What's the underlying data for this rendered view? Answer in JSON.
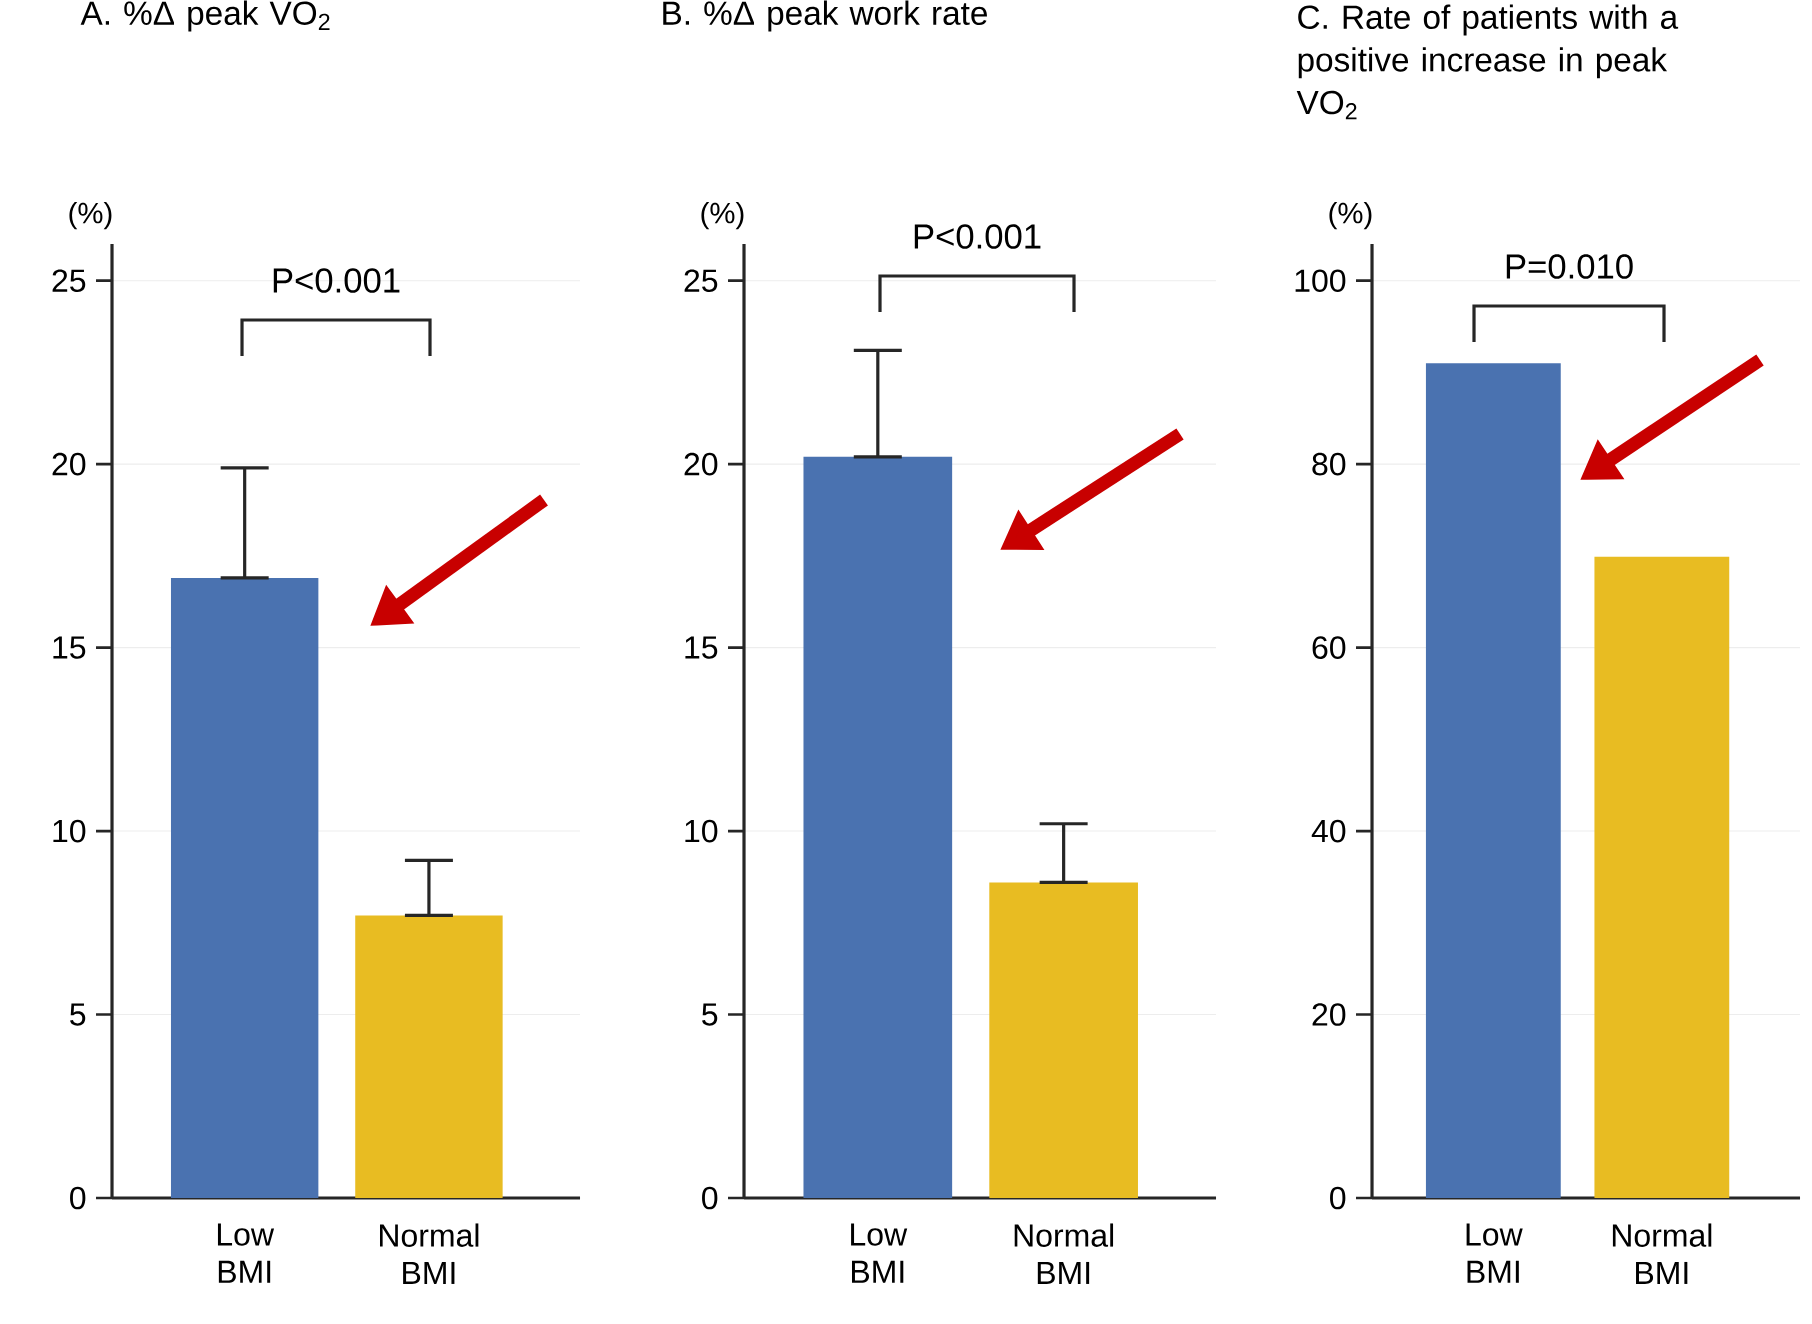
{
  "chart_data": [
    {
      "type": "bar",
      "title": "A.  %Δ peak VO$_{2}$",
      "ylabel": "(%)",
      "categories": [
        "Low BMI",
        "Normal BMI"
      ],
      "values": [
        16.9,
        7.7
      ],
      "colors": [
        "#4a72b0",
        "#e8bc22"
      ],
      "errors": [
        [
          16.9,
          19.9
        ],
        [
          7.7,
          9.2
        ]
      ],
      "ylim": [
        0,
        26
      ],
      "yticks": [
        0,
        5,
        10,
        15,
        20,
        25
      ],
      "grid": "y",
      "annotations": [
        "P<0.001"
      ]
    },
    {
      "type": "bar",
      "title": "B.  %Δ peak work rate",
      "ylabel": "(%)",
      "categories": [
        "Low BMI",
        "Normal BMI"
      ],
      "values": [
        20.2,
        8.6
      ],
      "colors": [
        "#4a72b0",
        "#e8bc22"
      ],
      "errors": [
        [
          20.2,
          23.1
        ],
        [
          8.6,
          10.2
        ]
      ],
      "ylim": [
        0,
        26
      ],
      "yticks": [
        0,
        5,
        10,
        15,
        20,
        25
      ],
      "grid": "y",
      "annotations": [
        "P<0.001"
      ]
    },
    {
      "type": "bar",
      "title": "C.  Rate of patients with a positive increase in peak VO$_{2}$",
      "ylabel": "(%)",
      "categories": [
        "Low BMI",
        "Normal BMI"
      ],
      "values": [
        91.0,
        69.9
      ],
      "colors": [
        "#4a72b0",
        "#e8bc22"
      ],
      "ylim": [
        0,
        104
      ],
      "yticks": [
        0,
        20,
        40,
        60,
        80,
        100
      ],
      "grid": "y",
      "annotations": [
        "P=0.010"
      ]
    }
  ]
}
